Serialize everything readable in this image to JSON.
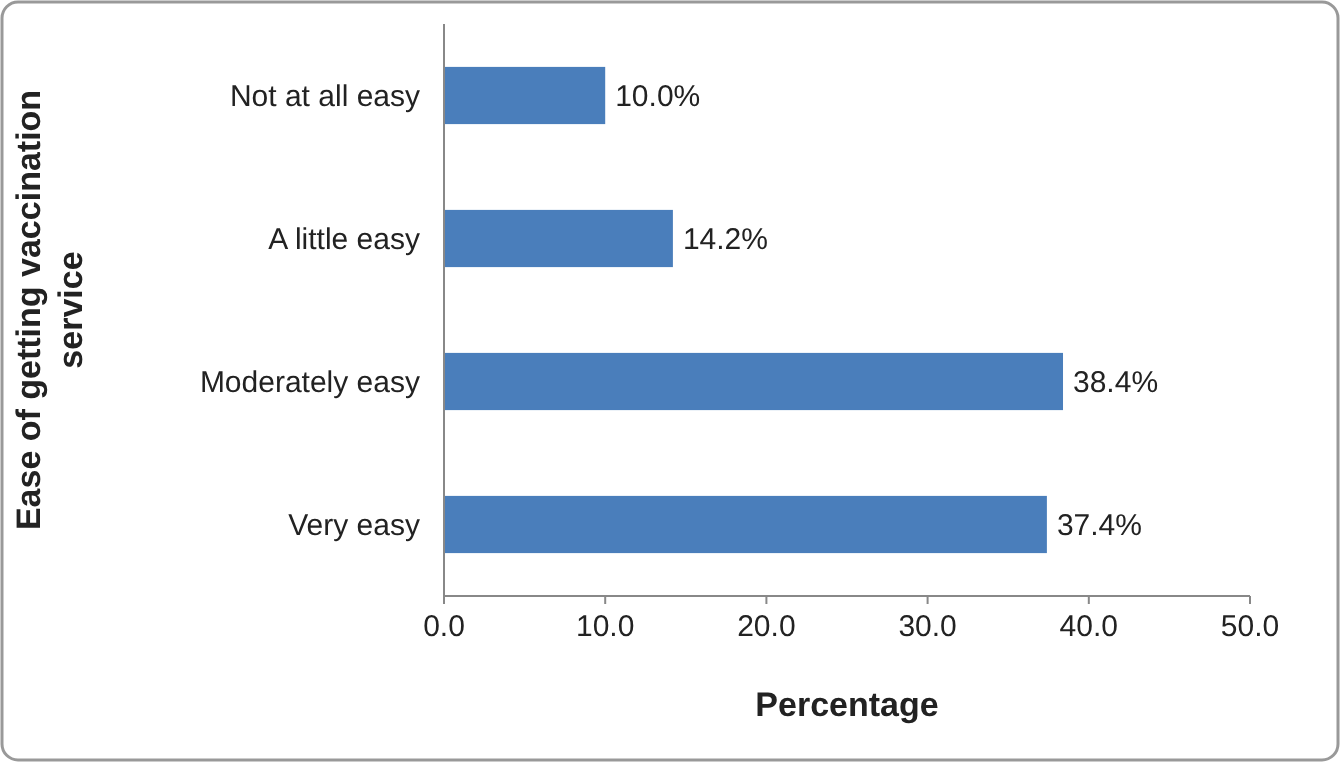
{
  "chart_data": {
    "type": "bar",
    "orientation": "horizontal",
    "xlabel": "Percentage",
    "ylabel": "Ease of getting vaccination service",
    "categories": [
      "Not at all easy",
      "A little easy",
      "Moderately easy",
      "Very easy"
    ],
    "values": [
      10.0,
      14.2,
      38.4,
      37.4
    ],
    "value_labels": [
      "10.0%",
      "14.2%",
      "38.4%",
      "37.4%"
    ],
    "color": "#4a7ebb",
    "xlim": [
      0,
      50
    ],
    "xticks": [
      {
        "value": 0,
        "label": "0.0"
      },
      {
        "value": 10,
        "label": "10.0"
      },
      {
        "value": 20,
        "label": "20.0"
      },
      {
        "value": 30,
        "label": "30.0"
      },
      {
        "value": 40,
        "label": "40.0"
      },
      {
        "value": 50,
        "label": "50.0"
      }
    ],
    "grid": false
  }
}
